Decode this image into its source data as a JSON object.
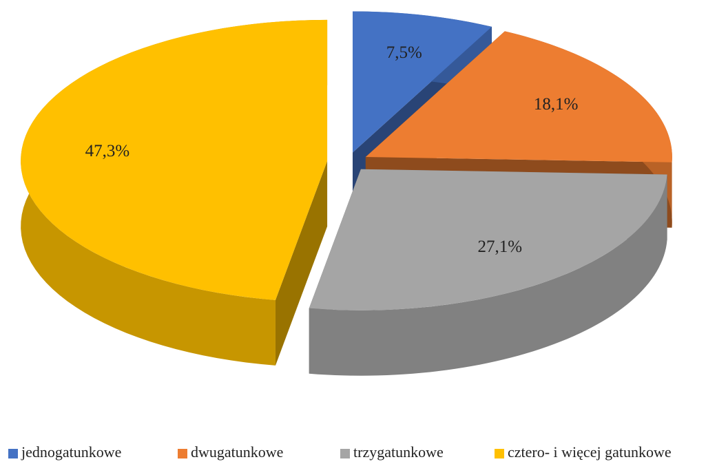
{
  "chart_data": {
    "type": "pie",
    "categories": [
      "jednogatunkowe",
      "dwugatunkowe",
      "trzygatunkowe",
      "cztero- i więcej gatunkowe"
    ],
    "values": [
      7.5,
      18.1,
      27.1,
      47.3
    ],
    "value_labels": [
      "7,5%",
      "18,1%",
      "27,1%",
      "47,3%"
    ],
    "colors": [
      "#4472c4",
      "#ed7d31",
      "#a5a5a5",
      "#ffc000"
    ],
    "legend": "bottom"
  }
}
